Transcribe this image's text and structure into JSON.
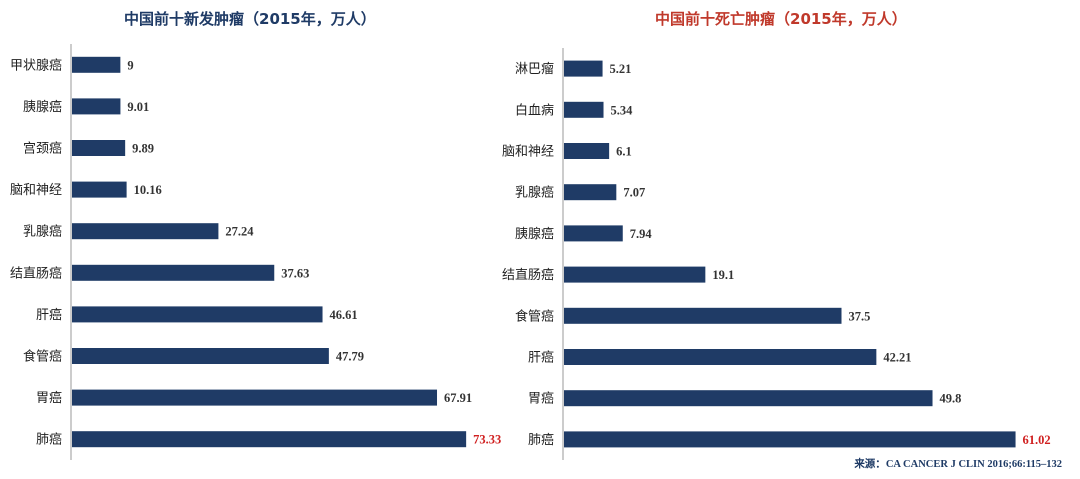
{
  "chart_data": [
    {
      "type": "bar",
      "orientation": "horizontal",
      "title": "中国前十新发肿瘤（2015年，万人）",
      "categories": [
        "甲状腺癌",
        "胰腺癌",
        "宫颈癌",
        "脑和神经",
        "乳腺癌",
        "结直肠癌",
        "肝癌",
        "食管癌",
        "胃癌",
        "肺癌"
      ],
      "values": [
        9,
        9.01,
        9.89,
        10.16,
        27.24,
        37.63,
        46.61,
        47.79,
        67.91,
        73.33
      ],
      "value_labels": [
        "9",
        "9.01",
        "9.89",
        "10.16",
        "27.24",
        "37.63",
        "46.61",
        "47.79",
        "67.91",
        "73.33"
      ],
      "xlim": [
        0,
        80
      ],
      "bar_color": "#1f3b66",
      "highlight_index": 9,
      "highlight_label_color": "#d01f1f",
      "grid": false
    },
    {
      "type": "bar",
      "orientation": "horizontal",
      "title": "中国前十死亡肿瘤（2015年，万人）",
      "categories": [
        "淋巴瘤",
        "白血病",
        "脑和神经",
        "乳腺癌",
        "胰腺癌",
        "结直肠癌",
        "食管癌",
        "肝癌",
        "胃癌",
        "肺癌"
      ],
      "values": [
        5.21,
        5.34,
        6.1,
        7.07,
        7.94,
        19.1,
        37.5,
        42.21,
        49.8,
        61.02
      ],
      "value_labels": [
        "5.21",
        "5.34",
        "6.1",
        "7.07",
        "7.94",
        "19.1",
        "37.5",
        "42.21",
        "49.8",
        "61.02"
      ],
      "xlim": [
        0,
        70
      ],
      "bar_color": "#1f3b66",
      "highlight_index": 9,
      "highlight_label_color": "#d01f1f",
      "grid": false
    }
  ],
  "source": {
    "prefix": "来源：",
    "text": "CA CANCER J CLIN 2016;66:115–132"
  }
}
